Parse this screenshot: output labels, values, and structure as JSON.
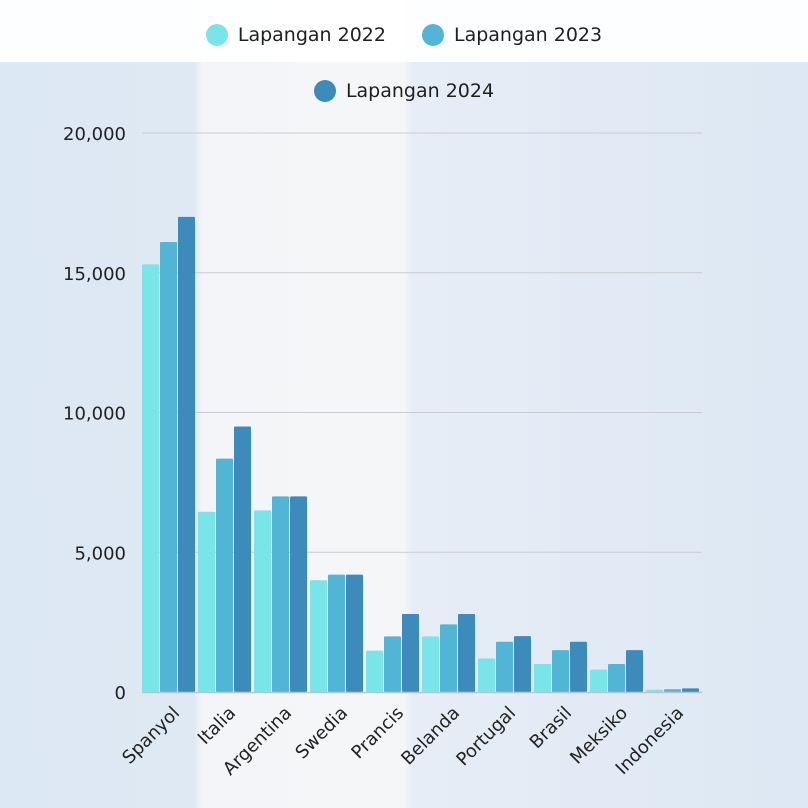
{
  "chart_data": {
    "type": "bar",
    "title": "",
    "xlabel": "",
    "ylabel": "",
    "ylim": [
      0,
      20000
    ],
    "yticks": [
      "0",
      "5,000",
      "10,000",
      "15,000",
      "20,000"
    ],
    "grid": true,
    "legend_position": "top",
    "categories": [
      "Spanyol",
      "Italia",
      "Argentina",
      "Swedia",
      "Prancis",
      "Belanda",
      "Portugal",
      "Brasil",
      "Meksiko",
      "Indonesia"
    ],
    "series": [
      {
        "name": "Lapangan 2022",
        "color": "#7ae5e8",
        "values": [
          15300,
          6450,
          6500,
          4000,
          1480,
          1990,
          1200,
          1000,
          800,
          80
        ]
      },
      {
        "name": "Lapangan 2023",
        "color": "#52b5d6",
        "values": [
          16100,
          8350,
          7000,
          4200,
          1990,
          2420,
          1800,
          1500,
          1000,
          100
        ]
      },
      {
        "name": "Lapangan 2024",
        "color": "#3d8bbb",
        "values": [
          17000,
          9500,
          7000,
          4200,
          2790,
          2790,
          2000,
          1800,
          1500,
          130
        ]
      }
    ]
  }
}
